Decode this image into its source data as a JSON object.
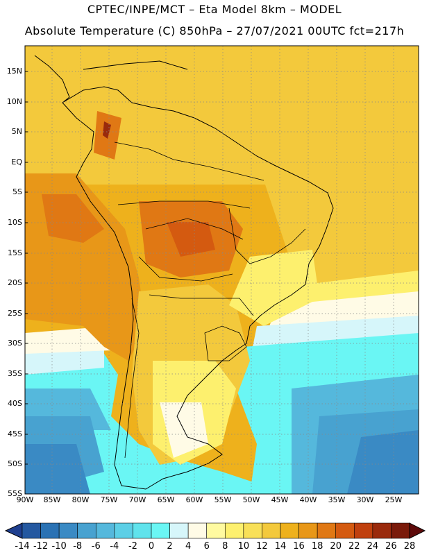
{
  "title_line1": "CPTEC/INPE/MCT –  Eta Model 8km – MODEL",
  "title_line2": "Absolute Temperature (C) 850hPa – 27/07/2021 00UTC fct=217h",
  "lat_labels": [
    "15N",
    "10N",
    "5N",
    "EQ",
    "5S",
    "10S",
    "15S",
    "20S",
    "25S",
    "30S",
    "35S",
    "40S",
    "45S",
    "50S",
    "55S"
  ],
  "lon_labels": [
    "90W",
    "85W",
    "80W",
    "75W",
    "70W",
    "65W",
    "60W",
    "55W",
    "50W",
    "45W",
    "40W",
    "35W",
    "30W",
    "25W"
  ],
  "colorbar": {
    "labels": [
      "-14",
      "-12",
      "-10",
      "-8",
      "-6",
      "-4",
      "-2",
      "0",
      "2",
      "4",
      "6",
      "8",
      "10",
      "12",
      "14",
      "16",
      "18",
      "20",
      "22",
      "24",
      "26",
      "28"
    ],
    "colors": [
      "#1f3f8f",
      "#2458a0",
      "#2a72b4",
      "#3a8ac4",
      "#48a2d0",
      "#55b8dc",
      "#5ccfe6",
      "#60e3ec",
      "#6af6f4",
      "#d6f6fa",
      "#fffbe6",
      "#fffaa0",
      "#fdf06e",
      "#f8e058",
      "#f3c93c",
      "#eeb11c",
      "#e89718",
      "#e07814",
      "#d45a10",
      "#c0400e",
      "#9a2a0c",
      "#7a1a0a",
      "#5e0a0a"
    ]
  },
  "field_colors": {
    "ocean_deep": "#3a8ac4",
    "ocean_mid": "#48a2d0",
    "cold_1": "#55b8dc",
    "cold_2": "#6af6f4",
    "cool": "#d6f6fa",
    "mild": "#fffbe6",
    "lightyellow": "#fdf06e",
    "yellow": "#f3c93c",
    "lightorange": "#eeb11c",
    "orange": "#e89718",
    "deep_orange": "#e07814",
    "red_orange": "#d45a10",
    "brown": "#9a2a0c"
  }
}
